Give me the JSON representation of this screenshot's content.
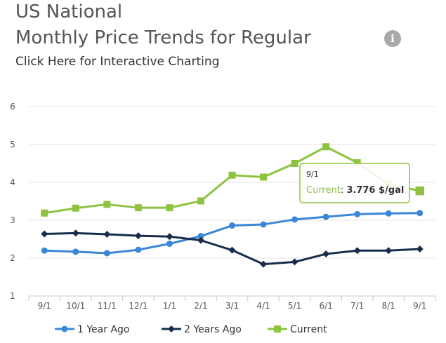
{
  "header": {
    "title_line1": "US National",
    "title_line2": "Monthly Price Trends for Regular",
    "subtitle": "Click Here for Interactive Charting",
    "info_icon": "info-icon"
  },
  "colors": {
    "one_year": "#3a87d8",
    "two_years": "#172d4a",
    "current": "#8dc33f",
    "grid": "#e6e6e6",
    "axis": "#c8c8c8"
  },
  "chart_data": {
    "type": "line",
    "categories": [
      "9/1",
      "10/1",
      "11/1",
      "12/1",
      "1/1",
      "2/1",
      "3/1",
      "4/1",
      "5/1",
      "6/1",
      "7/1",
      "8/1",
      "9/1"
    ],
    "ylim": [
      1,
      6
    ],
    "yticks": [
      1,
      2,
      3,
      4,
      5,
      6
    ],
    "grid": true,
    "legend_position": "bottom",
    "series": [
      {
        "name": "1 Year Ago",
        "color": "#3a87d8",
        "marker": "circle",
        "values": [
          2.2,
          2.17,
          2.13,
          2.22,
          2.38,
          2.58,
          2.86,
          2.89,
          3.02,
          3.09,
          3.16,
          3.18,
          3.19
        ]
      },
      {
        "name": "2 Years Ago",
        "color": "#172d4a",
        "marker": "diamond",
        "values": [
          2.64,
          2.66,
          2.63,
          2.59,
          2.57,
          2.47,
          2.21,
          1.84,
          1.9,
          2.11,
          2.2,
          2.2,
          2.24
        ]
      },
      {
        "name": "Current",
        "color": "#8dc33f",
        "marker": "square",
        "values": [
          3.19,
          3.32,
          3.42,
          3.33,
          3.33,
          3.51,
          4.19,
          4.14,
          4.5,
          4.94,
          4.52,
          3.95,
          3.776
        ]
      }
    ],
    "tooltip": {
      "date": "9/1",
      "series_label": "Current",
      "value_text": "3.776 $/gal",
      "series_index": 2,
      "point_index": 12
    }
  }
}
